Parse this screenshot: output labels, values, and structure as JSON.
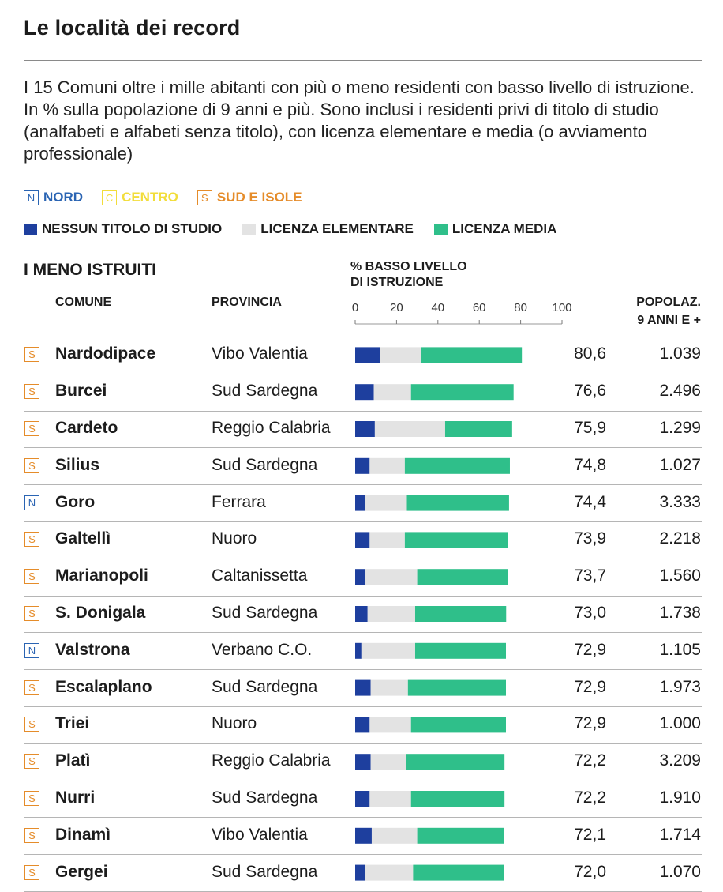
{
  "title": "Le località dei record",
  "intro": "I 15 Comuni oltre i mille abitanti con più o meno residenti con basso livello di istruzione. In % sulla popolazione di 9 anni e più. Sono inclusi i residenti privi di titolo di studio (analfabeti e alfabeti senza titolo), con licenza elementare e media (o avviamento professionale)",
  "regions": [
    {
      "code": "N",
      "label": "NORD",
      "color": "#2a64b3"
    },
    {
      "code": "C",
      "label": "CENTRO",
      "color": "#f2dd3a"
    },
    {
      "code": "S",
      "label": "SUD E ISOLE",
      "color": "#e58c2a"
    }
  ],
  "colors": {
    "nessun_titolo": "#1e3f9e",
    "elementare": "#e3e3e3",
    "media": "#2fbf8a"
  },
  "section_title": "I MENO ISTRUITI",
  "headers": {
    "comune": "COMUNE",
    "provincia": "PROVINCIA",
    "pct_line1": "% BASSO LIVELLO",
    "pct_line2": "DI ISTRUZIONE",
    "pop_line1": "POPOLAZ.",
    "pop_line2": "9 ANNI E +"
  },
  "chart_data": {
    "type": "bar",
    "title": "% BASSO LIVELLO DI ISTRUZIONE",
    "stacked": true,
    "orientation": "horizontal",
    "xlim": [
      0,
      100
    ],
    "xticks": [
      "0",
      "20",
      "40",
      "60",
      "80",
      "100"
    ],
    "legend": [
      "NESSUN TITOLO DI STUDIO",
      "LICENZA ELEMENTARE",
      "LICENZA MEDIA"
    ],
    "rows": [
      {
        "region": "S",
        "comune": "Nardodipace",
        "provincia": "Vibo Valentia",
        "total": "80,6",
        "popolazione": "1.039",
        "nessun_titolo": 12,
        "elementare": 20,
        "media": 48.6
      },
      {
        "region": "S",
        "comune": "Burcei",
        "provincia": "Sud Sardegna",
        "total": "76,6",
        "popolazione": "2.496",
        "nessun_titolo": 9,
        "elementare": 18,
        "media": 49.6
      },
      {
        "region": "S",
        "comune": "Cardeto",
        "provincia": "Reggio Calabria",
        "total": "75,9",
        "popolazione": "1.299",
        "nessun_titolo": 9.5,
        "elementare": 34,
        "media": 32.4
      },
      {
        "region": "S",
        "comune": "Silius",
        "provincia": "Sud Sardegna",
        "total": "74,8",
        "popolazione": "1.027",
        "nessun_titolo": 7,
        "elementare": 17,
        "media": 50.8
      },
      {
        "region": "N",
        "comune": "Goro",
        "provincia": "Ferrara",
        "total": "74,4",
        "popolazione": "3.333",
        "nessun_titolo": 5,
        "elementare": 20,
        "media": 49.4
      },
      {
        "region": "S",
        "comune": "Galtellì",
        "provincia": "Nuoro",
        "total": "73,9",
        "popolazione": "2.218",
        "nessun_titolo": 7,
        "elementare": 17,
        "media": 49.9
      },
      {
        "region": "S",
        "comune": "Marianopoli",
        "provincia": "Caltanissetta",
        "total": "73,7",
        "popolazione": "1.560",
        "nessun_titolo": 5,
        "elementare": 25,
        "media": 43.7
      },
      {
        "region": "S",
        "comune": "S. Donigala",
        "provincia": "Sud Sardegna",
        "total": "73,0",
        "popolazione": "1.738",
        "nessun_titolo": 6,
        "elementare": 23,
        "media": 44
      },
      {
        "region": "N",
        "comune": "Valstrona",
        "provincia": "Verbano C.O.",
        "total": "72,9",
        "popolazione": "1.105",
        "nessun_titolo": 3,
        "elementare": 26,
        "media": 43.9
      },
      {
        "region": "S",
        "comune": "Escalaplano",
        "provincia": "Sud Sardegna",
        "total": "72,9",
        "popolazione": "1.973",
        "nessun_titolo": 7.5,
        "elementare": 18,
        "media": 47.4
      },
      {
        "region": "S",
        "comune": "Triei",
        "provincia": "Nuoro",
        "total": "72,9",
        "popolazione": "1.000",
        "nessun_titolo": 7,
        "elementare": 20,
        "media": 45.9
      },
      {
        "region": "S",
        "comune": "Platì",
        "provincia": "Reggio Calabria",
        "total": "72,2",
        "popolazione": "3.209",
        "nessun_titolo": 7.5,
        "elementare": 17,
        "media": 47.7
      },
      {
        "region": "S",
        "comune": "Nurri",
        "provincia": "Sud Sardegna",
        "total": "72,2",
        "popolazione": "1.910",
        "nessun_titolo": 7,
        "elementare": 20,
        "media": 45.2
      },
      {
        "region": "S",
        "comune": "Dinamì",
        "provincia": "Vibo Valentia",
        "total": "72,1",
        "popolazione": "1.714",
        "nessun_titolo": 8,
        "elementare": 22,
        "media": 42.1
      },
      {
        "region": "S",
        "comune": "Gergei",
        "provincia": "Sud Sardegna",
        "total": "72,0",
        "popolazione": "1.070",
        "nessun_titolo": 5,
        "elementare": 23,
        "media": 44
      }
    ]
  }
}
